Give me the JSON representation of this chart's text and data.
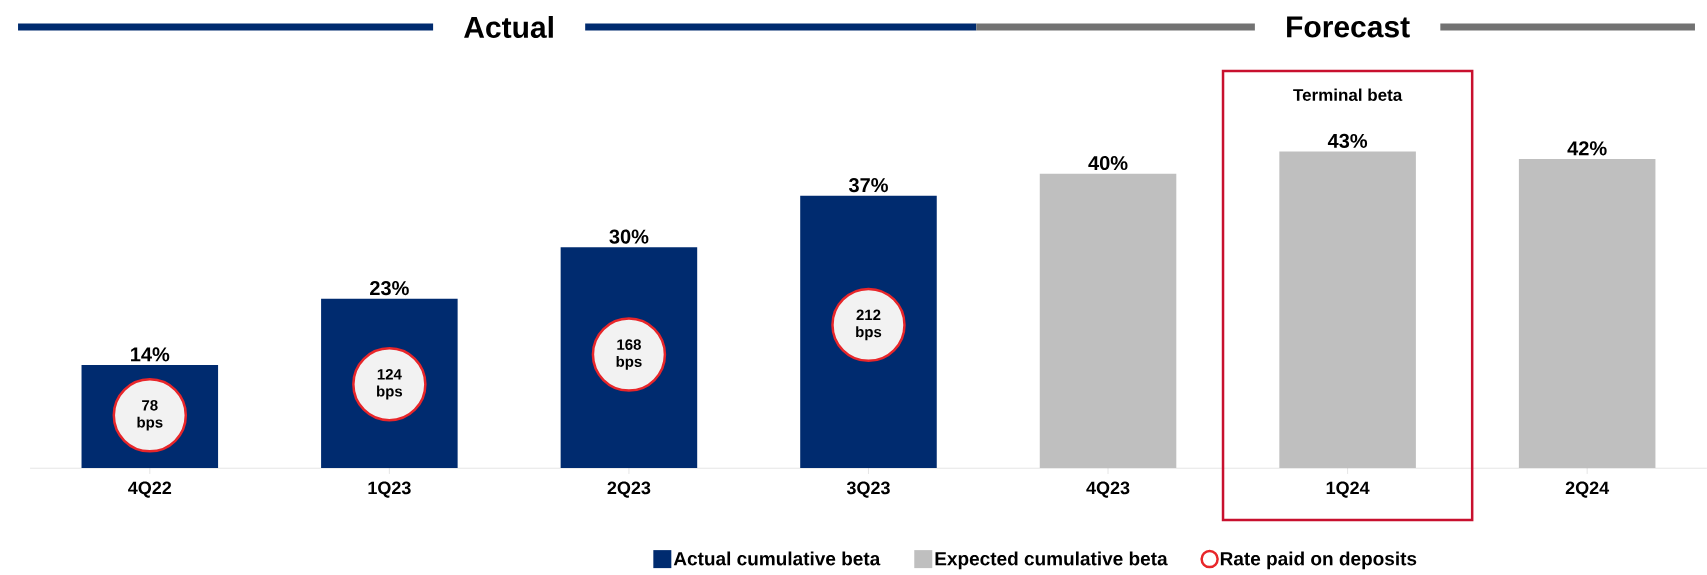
{
  "chart_data": {
    "type": "bar",
    "categories": [
      "4Q22",
      "1Q23",
      "2Q23",
      "3Q23",
      "4Q23",
      "1Q24",
      "2Q24"
    ],
    "series": [
      {
        "name": "Actual cumulative beta",
        "color": "#002b6f",
        "values": [
          14,
          23,
          30,
          37,
          null,
          null,
          null
        ],
        "value_labels": [
          "14%",
          "23%",
          "30%",
          "37%",
          null,
          null,
          null
        ]
      },
      {
        "name": "Expected cumulative beta",
        "color": "#bfbfbf",
        "values": [
          null,
          null,
          null,
          null,
          40,
          43,
          42
        ],
        "value_labels": [
          null,
          null,
          null,
          null,
          "40%",
          "43%",
          "42%"
        ]
      },
      {
        "name": "Rate paid on deposits",
        "type": "scatter",
        "axis": "y2",
        "marker": "circle",
        "color": "#e8262a",
        "values": [
          78,
          124,
          168,
          212,
          null,
          null,
          null
        ],
        "value_labels": [
          "78 bps",
          "124 bps",
          "168 bps",
          "212 bps",
          null,
          null,
          null
        ]
      }
    ],
    "tick_labels": "x",
    "legend": "bottom",
    "annotations": [
      "Actual",
      "Forecast",
      "Terminal beta"
    ]
  }
}
